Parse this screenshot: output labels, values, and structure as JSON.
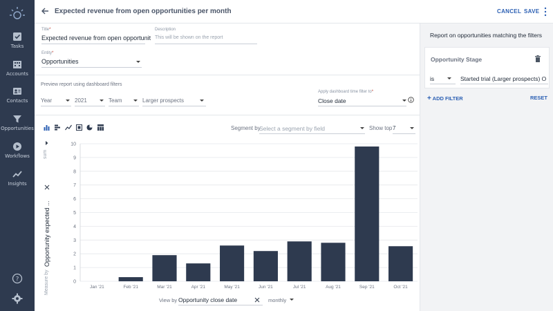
{
  "sidebar": {
    "items": [
      {
        "label": "Tasks",
        "icon": "check-square-icon"
      },
      {
        "label": "Accounts",
        "icon": "building-icon"
      },
      {
        "label": "Contacts",
        "icon": "contact-card-icon"
      },
      {
        "label": "Opportunities",
        "icon": "funnel-icon"
      },
      {
        "label": "Workflows",
        "icon": "play-circle-icon"
      },
      {
        "label": "Insights",
        "icon": "trend-line-icon"
      }
    ]
  },
  "header": {
    "title": "Expected revenue from open opportunities per month",
    "cancel_label": "CANCEL",
    "save_label": "SAVE"
  },
  "settings": {
    "title_label": "Title",
    "title_value": "Expected revenue from open opportunit",
    "description_label": "Description",
    "description_placeholder": "This will be shown on the report",
    "entity_label": "Entity",
    "entity_value": "Opportunities",
    "required_mark": "*"
  },
  "preview": {
    "label": "Preview report using dashboard filters",
    "year": "Year",
    "year_value": "2021",
    "team": "Team",
    "team_value": "Larger prospects",
    "time_filter_label": "Apply dashboard time filter to",
    "time_filter_value": "Close date"
  },
  "chart_controls": {
    "segment_by_label": "Segment by",
    "segment_placeholder": "Select a segment by field",
    "show_top_label": "Show top",
    "show_top_value": "7",
    "sum_label": "sum",
    "measure_label": "Measure by",
    "measure_value": "Opportunity expected ...",
    "view_by_label": "View by",
    "view_by_value": "Opportunity close date",
    "interval_value": "monthly"
  },
  "chart_data": {
    "type": "bar",
    "categories": [
      "Jan '21",
      "Feb '21",
      "Mar '21",
      "Apr '21",
      "May '21",
      "Jun '21",
      "Jul '21",
      "Aug '21",
      "Sep '21",
      "Oct '21"
    ],
    "values": [
      0,
      0.3,
      1.9,
      1.3,
      2.6,
      2.2,
      2.9,
      2.8,
      9.8,
      2.55
    ],
    "ylim": [
      0,
      10
    ],
    "yticks": [
      "0",
      "1",
      "2",
      "3",
      "4",
      "5",
      "6",
      "7",
      "8",
      "9",
      "10"
    ],
    "bar_color": "#2e3a4f",
    "grid": true
  },
  "right_panel": {
    "title": "Report on opportunities matching the filters",
    "filter_title": "Opportunity Stage",
    "operator": "is",
    "filter_value": "Started trial (Larger prospects) O",
    "add_filter_label": "ADD FILTER",
    "reset_label": "RESET"
  },
  "colors": {
    "sidebar": "#2e3a4f",
    "accent": "#2b5fb3"
  }
}
